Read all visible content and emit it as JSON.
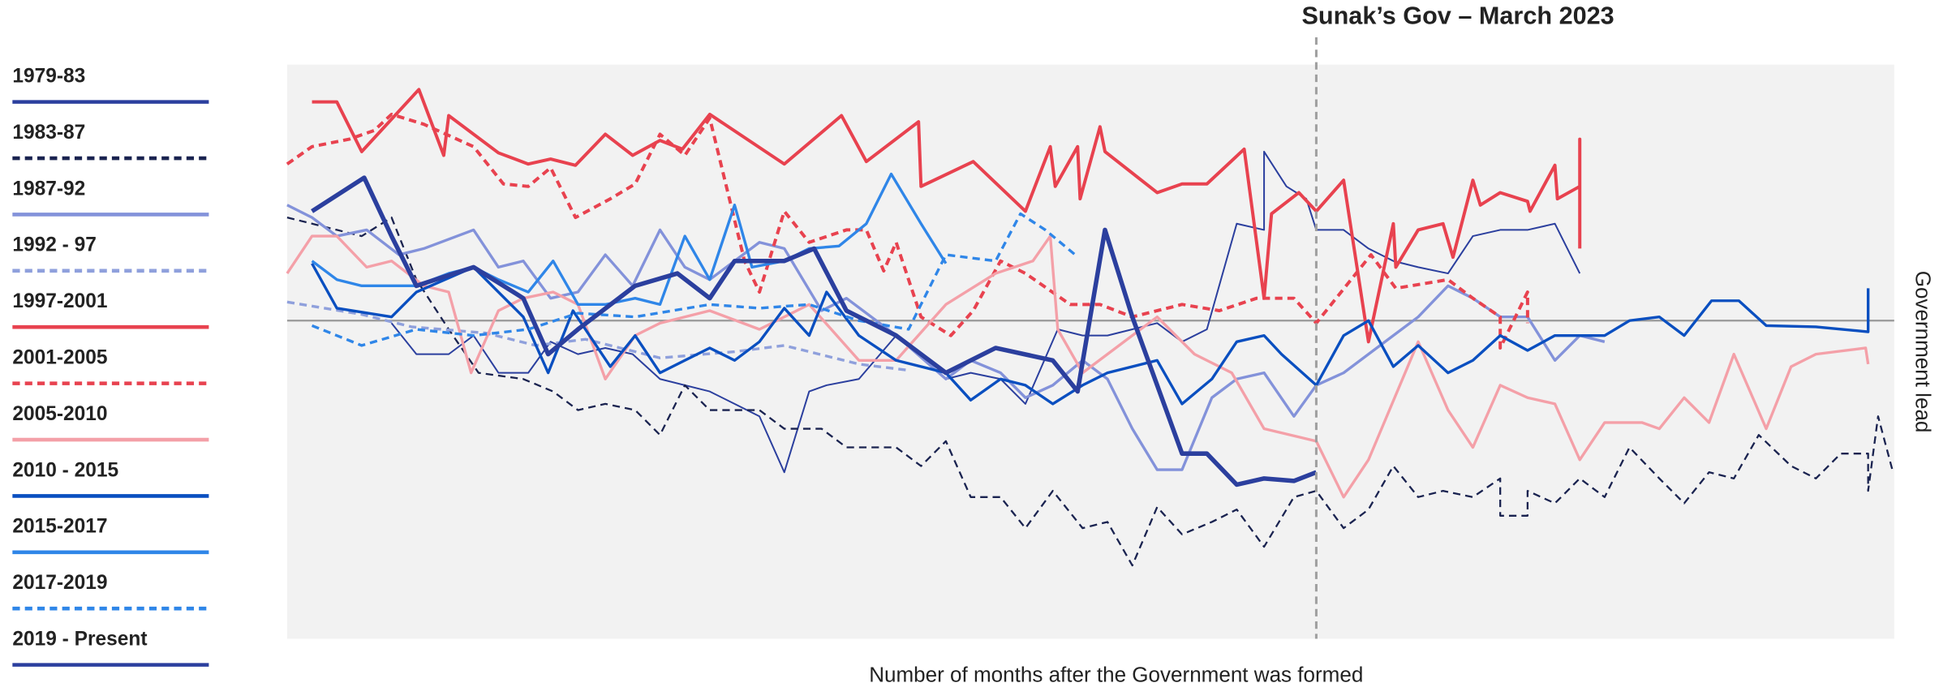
{
  "chart_data": {
    "type": "line",
    "xlabel": "Number of months after the Government was formed",
    "ylabel": "Government lead",
    "xlim": [
      0,
      64.65
    ],
    "ylim": [
      -25.6,
      20.6
    ],
    "reference_line": 0,
    "annotation": {
      "text": "Sunak’s Gov – March 2023",
      "x": 41.4
    },
    "series": [
      {
        "name": "1979-83",
        "color": "#2b3f9e",
        "linestyle": "solid",
        "linewidth": 1.3,
        "x": [
          4.2,
          5.2,
          6.5,
          7.5,
          8.5,
          9.7,
          10.6,
          11.7,
          12.8,
          13.9,
          15,
          17,
          18,
          19,
          20,
          21,
          21.7,
          23,
          24.5,
          26.5,
          27.5,
          28.7,
          29.7,
          31,
          32,
          33,
          34,
          35,
          36,
          37,
          38.2,
          39.3,
          39.3,
          40.2,
          41,
          41.4,
          42.5,
          43.5,
          44.5,
          45.5,
          46.7,
          47.7,
          48.8,
          49.9,
          51,
          52
        ],
        "values": [
          -0.2,
          -2.7,
          -2.7,
          -1.2,
          -4.2,
          -4.2,
          -1.7,
          -2.7,
          -2.2,
          -2.7,
          -4.7,
          -5.7,
          -6.7,
          -7.7,
          -12.2,
          -5.7,
          -5.2,
          -4.7,
          -1.2,
          -4.7,
          -4.2,
          -4.7,
          -6.7,
          -0.7,
          -1.2,
          -1.2,
          -0.7,
          -0.2,
          -1.7,
          -0.7,
          7.8,
          7.3,
          13.6,
          10.8,
          9.8,
          7.3,
          7.3,
          5.8,
          4.8,
          4.3,
          3.8,
          6.8,
          7.3,
          7.3,
          7.8,
          3.8
        ]
      },
      {
        "name": "1983-87",
        "color": "#1a2350",
        "linestyle": "dashed",
        "linewidth": 1.5,
        "x": [
          0,
          2,
          3,
          4.2,
          5.2,
          6.5,
          7.7,
          9.5,
          10.7,
          11.7,
          12.8,
          14,
          15,
          16,
          17,
          19,
          20,
          21.5,
          22.5,
          24.5,
          25.5,
          26.5,
          27.5,
          28.7,
          29.7,
          30.8,
          32,
          33,
          34,
          35,
          36,
          37.2,
          38.2,
          39.3,
          40.5,
          41.4,
          42.5,
          43.5,
          44.5,
          45.5,
          46.5,
          47.7,
          48.8,
          48.8,
          49.9,
          49.9,
          51,
          52,
          53,
          54,
          55.2,
          56.2,
          57.2,
          58.2,
          59.2,
          60.5,
          61.5,
          62.5,
          63.6,
          63.6,
          64,
          64.6
        ],
        "values": [
          8.3,
          7.3,
          6.8,
          8.3,
          3.3,
          -0.7,
          -4.2,
          -4.7,
          -5.7,
          -7.2,
          -6.7,
          -7.2,
          -9.2,
          -5.2,
          -7.2,
          -7.2,
          -8.7,
          -8.7,
          -10.2,
          -10.2,
          -11.7,
          -9.7,
          -14.2,
          -14.2,
          -16.7,
          -13.7,
          -16.7,
          -16.2,
          -19.7,
          -15,
          -17.2,
          -16.2,
          -15.2,
          -18.2,
          -14.2,
          -13.7,
          -16.7,
          -15.2,
          -11.7,
          -14.2,
          -13.7,
          -14.2,
          -12.7,
          -15.7,
          -15.7,
          -13.7,
          -14.7,
          -12.7,
          -14.2,
          -10.2,
          -12.7,
          -14.7,
          -12.2,
          -12.7,
          -9.2,
          -11.7,
          -12.7,
          -10.7,
          -10.7,
          -13.7,
          -7.7,
          -12.2
        ]
      },
      {
        "name": "1987-92",
        "color": "#8392da",
        "linestyle": "solid",
        "linewidth": 2.2,
        "x": [
          0,
          1,
          2,
          3.2,
          4.5,
          5.5,
          7.5,
          8.5,
          9.5,
          10.6,
          11.7,
          12.8,
          13.9,
          15,
          16,
          17,
          18,
          19,
          20,
          21.5,
          22.5,
          24.5,
          26.5,
          27.5,
          28.7,
          29.7,
          30.8,
          32,
          33,
          34,
          35,
          36,
          37.2,
          38.2,
          39.3,
          40.5,
          41.4,
          42.5,
          43.5,
          44.5,
          45.5,
          46.7,
          47.7,
          48.8,
          49.9,
          51,
          52,
          53
        ],
        "values": [
          9.3,
          8.3,
          6.8,
          7.3,
          5.3,
          5.8,
          7.3,
          4.3,
          4.8,
          1.8,
          2.3,
          5.3,
          2.8,
          7.3,
          4.3,
          3.3,
          4.8,
          6.3,
          5.8,
          0.8,
          1.8,
          -1.2,
          -4.7,
          -3.2,
          -4.2,
          -6.2,
          -5.2,
          -3.2,
          -4.7,
          -8.7,
          -12,
          -12,
          -6.2,
          -4.7,
          -4.2,
          -7.7,
          -5.2,
          -4.2,
          -2.7,
          -1.2,
          0.3,
          2.8,
          1.8,
          0.3,
          0.3,
          -3.2,
          -1.2,
          -1.7
        ]
      },
      {
        "name": "1992 - 97",
        "color": "#8fa0dc",
        "linestyle": "dashed",
        "linewidth": 2.2,
        "x": [
          0,
          3,
          5,
          8,
          10,
          12,
          15,
          18,
          20,
          23,
          25
        ],
        "values": [
          1.5,
          0.5,
          -0.5,
          -1,
          -2,
          -1.5,
          -3,
          -2.5,
          -2,
          -3.5,
          -4
        ]
      },
      {
        "name": "1997-2001",
        "color": "#e8424f",
        "linestyle": "solid",
        "linewidth": 2.6,
        "x": [
          1,
          2,
          3,
          5.3,
          6.3,
          6.5,
          8.5,
          9.7,
          10.6,
          11.6,
          12.8,
          13.9,
          15,
          15.9,
          17,
          20,
          22.3,
          23.3,
          25.4,
          25.5,
          27.6,
          29.7,
          30.7,
          30.9,
          31.8,
          31.9,
          32.7,
          32.9,
          35,
          36,
          37,
          38.5,
          39.3,
          39.6,
          40.7,
          41.4,
          42.5,
          43.5,
          44.5,
          44.6,
          45.5,
          46.5,
          46.9,
          47.7,
          48,
          48.8,
          49.9,
          50,
          51,
          51.1,
          52,
          52,
          52
        ],
        "values": [
          17.6,
          17.6,
          13.6,
          18.6,
          13.3,
          16.5,
          13.5,
          12.6,
          13,
          12.5,
          15,
          13.3,
          14.5,
          13.8,
          16.6,
          12.6,
          16.5,
          12.8,
          16,
          10.8,
          12.8,
          8.8,
          14,
          10.8,
          14,
          9.8,
          15.6,
          13.6,
          10.3,
          11,
          11,
          13.8,
          1.8,
          8.6,
          10.3,
          8.8,
          11.3,
          -1.7,
          7.8,
          4.3,
          7.3,
          7.8,
          5.1,
          11.3,
          9.3,
          10.3,
          9.6,
          8.8,
          12.5,
          9.8,
          10.8,
          14.6,
          5.8
        ]
      },
      {
        "name": "2001-2005",
        "color": "#e8424f",
        "linestyle": "dashed",
        "linewidth": 2.6,
        "x": [
          0,
          1,
          2.5,
          3.5,
          4.2,
          5.5,
          7.5,
          8.7,
          9.7,
          10.6,
          11.6,
          13,
          14,
          15,
          16,
          17,
          18.4,
          19,
          20,
          21,
          22.5,
          23.3,
          24,
          24.5,
          25.5,
          26.7,
          27.6,
          28.7,
          29.7,
          31.5,
          32.7,
          34,
          36,
          37.5,
          39,
          40.5,
          41.4,
          42.2,
          43.6,
          44.6,
          46.7,
          47.7,
          48.8,
          48.8,
          49.9,
          49.9
        ],
        "values": [
          12.6,
          14,
          14.6,
          15.3,
          16.6,
          15.8,
          14,
          11,
          10.8,
          12.3,
          8.3,
          9.8,
          11,
          15,
          13.3,
          16.3,
          4.8,
          2.3,
          8.8,
          6.3,
          7.3,
          7.3,
          4,
          6.3,
          0.3,
          -1.2,
          0.8,
          4.8,
          3.8,
          1.3,
          1.3,
          0.3,
          1.3,
          0.8,
          1.8,
          1.8,
          -0.2,
          1.8,
          5.3,
          2.6,
          3.3,
          1.8,
          0.3,
          -2.2,
          2.3,
          -0.2
        ]
      },
      {
        "name": "2005-2010",
        "color": "#f4a0a8",
        "linestyle": "solid",
        "linewidth": 2.2,
        "x": [
          0,
          1,
          2,
          3.2,
          4.2,
          5.5,
          6.5,
          7.4,
          8.5,
          9.5,
          10.7,
          11.7,
          12.8,
          14,
          15,
          17,
          19,
          21,
          23,
          24.5,
          26.5,
          28.5,
          30,
          30.7,
          31,
          32,
          33,
          35,
          36.5,
          38,
          39.3,
          41.4,
          42.5,
          43.5,
          45.5,
          46.7,
          47.7,
          48.8,
          49.9,
          51,
          52,
          53,
          54.5,
          55.2,
          56.2,
          57.2,
          58.2,
          59.5,
          60.5,
          61.5,
          63.5,
          63.6
        ],
        "values": [
          3.8,
          6.8,
          6.8,
          4.3,
          4.8,
          2.8,
          2.3,
          -4.2,
          0.8,
          1.8,
          2.3,
          1.3,
          -4.7,
          -1.2,
          -0.2,
          0.8,
          -0.7,
          1.3,
          -3.2,
          -3.2,
          1.3,
          3.8,
          4.8,
          6.8,
          -0.7,
          -4.2,
          -2.7,
          0.3,
          -2.7,
          -4.2,
          -8.7,
          -9.7,
          -14.2,
          -11.2,
          -1.7,
          -7.2,
          -10.2,
          -5.2,
          -6.2,
          -6.7,
          -11.2,
          -8.2,
          -8.2,
          -8.7,
          -6.2,
          -8.2,
          -2.7,
          -8.7,
          -3.7,
          -2.7,
          -2.2,
          -3.5
        ]
      },
      {
        "name": "2010 - 2015",
        "color": "#0a4fc0",
        "linestyle": "solid",
        "linewidth": 2.2,
        "x": [
          1,
          2,
          4.2,
          5.2,
          7.5,
          9.5,
          10.5,
          11.5,
          13,
          14,
          15,
          16,
          17,
          18,
          19,
          20,
          21,
          21.7,
          23,
          24.5,
          26.5,
          27.5,
          28.7,
          29.7,
          30.8,
          32,
          33,
          35,
          36,
          37.2,
          38.2,
          39.3,
          40,
          41.4,
          42.5,
          43.5,
          44.5,
          45.5,
          46.7,
          47.7,
          48.8,
          49.9,
          51,
          53,
          54,
          55.2,
          56.2,
          57.3,
          58.4,
          59.5,
          61.5,
          63.6,
          63.6
        ],
        "values": [
          4.6,
          1,
          0.3,
          2.3,
          4.3,
          0.3,
          -4.2,
          0.8,
          -3.7,
          -1.2,
          -4.2,
          -3.2,
          -2.2,
          -3.2,
          -1.7,
          1,
          -1.2,
          2.3,
          -1.2,
          -3.2,
          -4.2,
          -6.4,
          -4.7,
          -5.2,
          -6.7,
          -5.2,
          -4.2,
          -3.2,
          -6.7,
          -4.7,
          -1.7,
          -1.2,
          -2.7,
          -5.2,
          -1.2,
          0,
          -3.7,
          -2,
          -4.2,
          -3.2,
          -1.2,
          -2.4,
          -1.2,
          -1.2,
          0,
          0.3,
          -1.2,
          1.6,
          1.6,
          -0.4,
          -0.5,
          -0.9,
          2.6
        ]
      },
      {
        "name": "2015-2017",
        "color": "#2f86e8",
        "linestyle": "solid",
        "linewidth": 2.2,
        "x": [
          1,
          2,
          3,
          5.2,
          6.5,
          7.5,
          8.5,
          9.7,
          10.7,
          11.7,
          12.8,
          14,
          15,
          16,
          17,
          18,
          18.7,
          20,
          21,
          22.2,
          23.3,
          24.3,
          25.5,
          26.5
        ],
        "values": [
          4.8,
          3.3,
          2.8,
          2.8,
          3.8,
          4.3,
          3.3,
          2.3,
          4.8,
          1.3,
          1.3,
          1.8,
          1.3,
          6.8,
          3.3,
          9.3,
          4.3,
          4.8,
          5.8,
          6,
          7.8,
          11.8,
          7.8,
          4.6
        ]
      },
      {
        "name": "2017-2019",
        "color": "#2f86e8",
        "linestyle": "dashed",
        "linewidth": 2.2,
        "x": [
          1,
          3,
          5.2,
          7.5,
          9.7,
          11.7,
          14,
          17,
          19,
          21,
          23,
          25,
          26.5,
          28.5,
          29.5,
          30.5,
          31.7
        ],
        "values": [
          -0.4,
          -2,
          -0.7,
          -1.2,
          -0.7,
          0.6,
          0.3,
          1.3,
          1,
          1.3,
          0,
          -0.7,
          5.3,
          4.8,
          8.6,
          7.3,
          5.3
        ]
      },
      {
        "name": "2019 - Present",
        "color": "#2b3f9e",
        "linestyle": "solid",
        "linewidth": 3.6,
        "x": [
          1,
          3.1,
          4.2,
          5.2,
          7.5,
          9.5,
          10.5,
          11.7,
          14,
          15.7,
          17,
          18,
          20,
          21.2,
          22.5,
          24.5,
          26.5,
          28.5,
          30.8,
          31.8,
          32.9,
          34,
          36,
          37,
          38.2,
          39.3,
          40.5,
          41.4
        ],
        "values": [
          8.8,
          11.5,
          6.8,
          2.8,
          4.3,
          1.8,
          -2.7,
          -0.7,
          2.8,
          3.8,
          1.8,
          4.8,
          4.8,
          5.8,
          0.8,
          -1.2,
          -4.2,
          -2.2,
          -3.2,
          -5.7,
          7.3,
          0.3,
          -10.7,
          -10.7,
          -13.2,
          -12.7,
          -12.9,
          -12.2
        ]
      }
    ]
  }
}
